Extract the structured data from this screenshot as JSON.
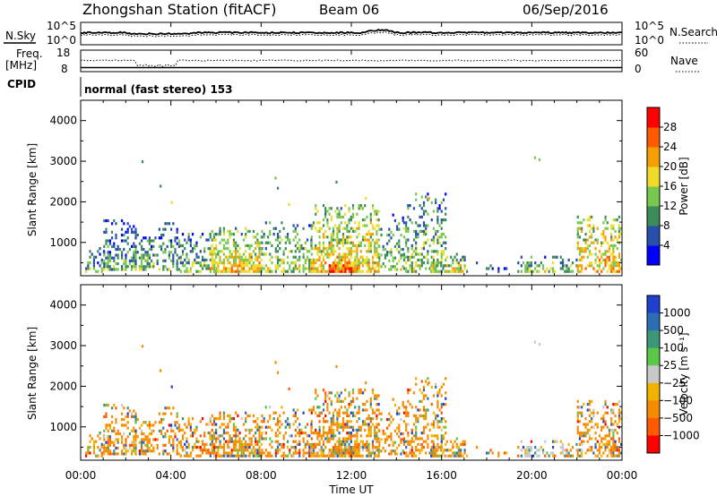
{
  "header": {
    "title": "Zhongshan Station (fitACF)",
    "beam": "Beam 06",
    "date": "06/Sep/2016",
    "cpid_label": "CPID",
    "cpid_text": "normal (fast stereo) 153"
  },
  "top_panels": {
    "nsky": {
      "left_label": "N.Sky",
      "right_label": "N.Search",
      "left_ticks": [
        "10^5",
        "10^0"
      ],
      "right_ticks": [
        "10^5",
        "10^0"
      ]
    },
    "freq": {
      "left_label_line1": "Freq.",
      "left_label_line2": "[MHz]",
      "right_label": "Nave",
      "left_ticks": [
        "18",
        "8"
      ],
      "right_ticks": [
        "60",
        "0"
      ]
    }
  },
  "chart_data": [
    {
      "type": "heatmap",
      "title": "",
      "xlabel": "Time UT",
      "ylabel": "Slant Range [km]",
      "y_ticks": [
        "1000",
        "2000",
        "3000",
        "4000"
      ],
      "y_range": [
        180,
        4500
      ],
      "x_range_hours": [
        0,
        24
      ],
      "colorbar": {
        "label": "Power [dB]",
        "ticks": [
          "4",
          "8",
          "12",
          "16",
          "20",
          "24",
          "28"
        ],
        "range": [
          0,
          32
        ],
        "colors": [
          "#0000ff",
          "#2850aa",
          "#3c8c5a",
          "#78c850",
          "#f0dc28",
          "#f5a000",
          "#ff5a00",
          "#ff0000"
        ]
      },
      "scatter_regions": [
        {
          "t0": 0.2,
          "t1": 1.0,
          "r0": 250,
          "r1": 900,
          "d": 0.45,
          "pw": 12
        },
        {
          "t0": 1.0,
          "t1": 2.4,
          "r0": 300,
          "r1": 1500,
          "d": 0.6,
          "pw": 12
        },
        {
          "t0": 2.4,
          "t1": 4.4,
          "r0": 300,
          "r1": 1450,
          "d": 0.55,
          "pw": 13
        },
        {
          "t0": 4.4,
          "t1": 6.0,
          "r0": 250,
          "r1": 1200,
          "d": 0.55,
          "pw": 14
        },
        {
          "t0": 5.7,
          "t1": 8.0,
          "r0": 250,
          "r1": 1350,
          "d": 0.75,
          "pw": 20
        },
        {
          "t0": 8.0,
          "t1": 10.2,
          "r0": 250,
          "r1": 1450,
          "d": 0.6,
          "pw": 16
        },
        {
          "t0": 10.2,
          "t1": 13.2,
          "r0": 250,
          "r1": 1900,
          "d": 0.7,
          "pw": 20
        },
        {
          "t0": 11.0,
          "t1": 12.2,
          "r0": 250,
          "r1": 600,
          "d": 0.9,
          "pw": 27
        },
        {
          "t0": 13.2,
          "t1": 14.3,
          "r0": 300,
          "r1": 1700,
          "d": 0.5,
          "pw": 15
        },
        {
          "t0": 14.3,
          "t1": 16.2,
          "r0": 250,
          "r1": 2200,
          "d": 0.5,
          "pw": 15
        },
        {
          "t0": 15.5,
          "t1": 17.0,
          "r0": 250,
          "r1": 700,
          "d": 0.7,
          "pw": 18
        },
        {
          "t0": 17.0,
          "t1": 19.5,
          "r0": 250,
          "r1": 500,
          "d": 0.12,
          "pw": 8
        },
        {
          "t0": 19.5,
          "t1": 22.0,
          "r0": 250,
          "r1": 650,
          "d": 0.5,
          "pw": 15
        },
        {
          "t0": 22.0,
          "t1": 24.0,
          "r0": 250,
          "r1": 1650,
          "d": 0.7,
          "pw": 21
        }
      ],
      "sparse_points": [
        {
          "t": 2.7,
          "r": 2950
        },
        {
          "t": 3.5,
          "r": 2350
        },
        {
          "t": 4.0,
          "r": 1950
        },
        {
          "t": 8.6,
          "r": 2550
        },
        {
          "t": 8.7,
          "r": 2300
        },
        {
          "t": 11.3,
          "r": 2450
        },
        {
          "t": 12.6,
          "r": 2050
        },
        {
          "t": 20.1,
          "r": 3050
        },
        {
          "t": 20.3,
          "r": 3000
        },
        {
          "t": 15.4,
          "r": 2050
        },
        {
          "t": 9.2,
          "r": 1900
        }
      ]
    },
    {
      "type": "heatmap",
      "title": "",
      "xlabel": "Time UT",
      "ylabel": "Slant Range [km]",
      "y_ticks": [
        "1000",
        "2000",
        "3000",
        "4000"
      ],
      "y_range": [
        180,
        4500
      ],
      "x_range_hours": [
        0,
        24
      ],
      "x_ticks": [
        "00:00",
        "04:00",
        "08:00",
        "12:00",
        "16:00",
        "20:00",
        "00:00"
      ],
      "colorbar": {
        "label": "Velocity [m s⁻¹]",
        "ticks": [
          "1000",
          "500",
          "100",
          "25",
          "−25",
          "−100",
          "−500",
          "−1000"
        ],
        "range": [
          -1000,
          1000
        ],
        "colors": [
          "#2040d0",
          "#2c6eb4",
          "#3c9678",
          "#5ac846",
          "#c8c8c8",
          "#f0b400",
          "#f58c00",
          "#ff5a00",
          "#ff0000"
        ]
      }
    }
  ]
}
